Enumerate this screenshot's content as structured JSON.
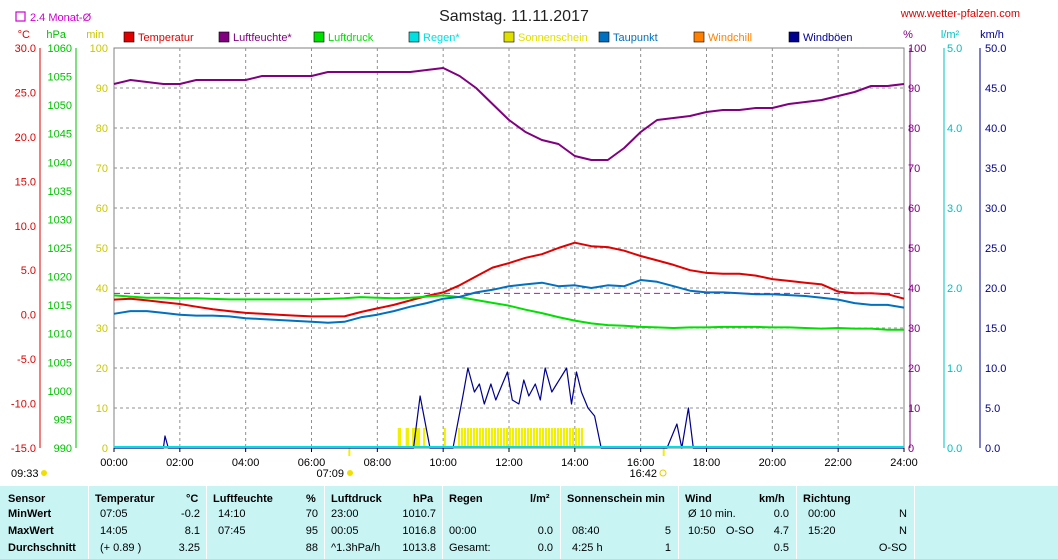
{
  "header": {
    "title": "Samstag. 11.11.2017",
    "site": "www.wetter-pfalzen.com",
    "monthly_avg_label": "2.4 Monat-Ø",
    "unit_celsius": "°C",
    "unit_hpa": "hPa",
    "unit_min": "min",
    "unit_percent": "%",
    "unit_lm2": "l/m²",
    "unit_kmh": "km/h"
  },
  "legend": [
    {
      "label": "Temperatur",
      "color": "#e00000"
    },
    {
      "label": "Luftfeuchte*",
      "color": "#800080"
    },
    {
      "label": "Luftdruck",
      "color": "#00e000"
    },
    {
      "label": "Regen*",
      "color": "#00e0e0"
    },
    {
      "label": "Sonnenschein",
      "color": "#e0e000"
    },
    {
      "label": "Taupunkt",
      "color": "#0070c0"
    },
    {
      "label": "Windchill",
      "color": "#ff8000"
    },
    {
      "label": "Windböen",
      "color": "#000090"
    }
  ],
  "sun_times": {
    "sunrise_time": "07:09",
    "sunset_time": "16:42",
    "corner_time": "09:33"
  },
  "chart_data": {
    "type": "line",
    "title": "Samstag. 11.11.2017",
    "x_ticks": [
      "00:00",
      "02:00",
      "04:00",
      "06:00",
      "08:00",
      "10:00",
      "12:00",
      "14:00",
      "16:00",
      "18:00",
      "20:00",
      "22:00",
      "24:00"
    ],
    "xlim": [
      0,
      24
    ],
    "axes": {
      "temperature_c": {
        "ylim": [
          -15,
          30
        ],
        "ticks": [
          "30.0",
          "25.0",
          "20.0",
          "15.0",
          "10.0",
          "5.0",
          "0.0",
          "-5.0",
          "-10.0",
          "-15.0"
        ],
        "color": "#e00000"
      },
      "pressure_hpa": {
        "ylim": [
          990,
          1060
        ],
        "ticks": [
          "1060",
          "1055",
          "1050",
          "1045",
          "1040",
          "1035",
          "1030",
          "1025",
          "1020",
          "1015",
          "1010",
          "1005",
          "1000",
          "995",
          "990"
        ],
        "color": "#00c000"
      },
      "sunshine_min": {
        "ylim": [
          0,
          100
        ],
        "ticks": [
          "100",
          "90",
          "80",
          "70",
          "60",
          "50",
          "40",
          "30",
          "20",
          "10",
          "0"
        ],
        "color": "#c8c800"
      },
      "humidity_pct": {
        "ylim": [
          0,
          100
        ],
        "ticks": [
          "100",
          "90",
          "80",
          "70",
          "60",
          "50",
          "40",
          "30",
          "20",
          "10",
          "0"
        ],
        "color": "#800080"
      },
      "rain_lm2": {
        "ylim": [
          0,
          5
        ],
        "ticks": [
          "5.0",
          "4.0",
          "3.0",
          "2.0",
          "1.0",
          "0.0"
        ],
        "color": "#00c0c0"
      },
      "wind_kmh": {
        "ylim": [
          0,
          50
        ],
        "ticks": [
          "50.0",
          "45.0",
          "40.0",
          "35.0",
          "30.0",
          "25.0",
          "20.0",
          "15.0",
          "10.0",
          "5.0",
          "0.0"
        ],
        "color": "#000090"
      }
    },
    "monthly_avg_temperature": 2.4,
    "series": [
      {
        "name": "Temperatur",
        "axis": "temperature_c",
        "color": "#e00000",
        "x": [
          0,
          0.5,
          1,
          1.5,
          2,
          2.5,
          3,
          3.5,
          4,
          4.5,
          5,
          5.5,
          6,
          6.5,
          7,
          7.5,
          8,
          8.5,
          9,
          9.5,
          10,
          10.5,
          11,
          11.5,
          12,
          12.5,
          13,
          13.5,
          14,
          14.5,
          15,
          15.5,
          16,
          16.5,
          17,
          17.5,
          18,
          18.5,
          19,
          19.5,
          20,
          20.5,
          21,
          21.5,
          22,
          22.5,
          23,
          23.5,
          24
        ],
        "values": [
          1.7,
          1.8,
          1.6,
          1.4,
          1.2,
          0.9,
          0.6,
          0.4,
          0.2,
          0.1,
          0.0,
          -0.1,
          -0.2,
          -0.2,
          -0.2,
          0.3,
          0.7,
          1.1,
          1.6,
          2.1,
          2.5,
          3.3,
          4.3,
          5.3,
          5.8,
          6.4,
          6.8,
          7.5,
          8.1,
          7.7,
          7.6,
          7.2,
          6.6,
          6.1,
          5.6,
          5.0,
          4.7,
          4.6,
          4.6,
          4.4,
          4.0,
          3.8,
          3.6,
          3.4,
          2.6,
          2.4,
          2.4,
          2.3,
          1.8
        ]
      },
      {
        "name": "Luftfeuchte*",
        "axis": "humidity_pct",
        "color": "#800080",
        "x": [
          0,
          0.5,
          1,
          1.5,
          2,
          2.5,
          3,
          3.5,
          4,
          4.5,
          5,
          5.5,
          6,
          6.5,
          7,
          7.5,
          8,
          8.5,
          9,
          9.5,
          10,
          10.5,
          11,
          11.5,
          12,
          12.5,
          13,
          13.5,
          14,
          14.5,
          15,
          15.5,
          16,
          16.5,
          17,
          17.5,
          18,
          18.5,
          19,
          19.5,
          20,
          20.5,
          21,
          21.5,
          22,
          22.5,
          23,
          23.5,
          24
        ],
        "values": [
          91,
          92,
          91.5,
          91,
          91,
          92,
          92,
          92,
          92,
          93,
          93,
          93,
          93,
          94,
          94,
          94,
          94,
          94,
          94,
          94.5,
          95,
          93,
          90,
          86,
          82,
          79,
          77,
          76,
          73,
          72,
          72,
          75,
          79,
          82,
          82.5,
          83,
          84,
          84.5,
          84.5,
          85,
          85,
          86,
          86.5,
          87,
          88,
          89,
          90.5,
          90.5,
          91
        ]
      },
      {
        "name": "Luftdruck",
        "axis": "pressure_hpa",
        "color": "#00e000",
        "x": [
          0,
          0.5,
          1,
          1.5,
          2,
          2.5,
          3,
          3.5,
          4,
          4.5,
          5,
          5.5,
          6,
          6.5,
          7,
          7.5,
          8,
          8.5,
          9,
          9.5,
          10,
          10.5,
          11,
          11.5,
          12,
          12.5,
          13,
          13.5,
          14,
          14.5,
          15,
          15.5,
          16,
          16.5,
          17,
          17.5,
          18,
          18.5,
          19,
          19.5,
          20,
          20.5,
          21,
          21.5,
          22,
          22.5,
          23,
          23.5,
          24
        ],
        "values": [
          1016.7,
          1016.5,
          1016.3,
          1016.3,
          1016.2,
          1016.2,
          1016.1,
          1016.0,
          1016.0,
          1016.0,
          1016.0,
          1016.0,
          1016.0,
          1016.1,
          1016.2,
          1016.4,
          1016.3,
          1016.2,
          1016.3,
          1016.5,
          1016.7,
          1016.4,
          1015.9,
          1015.4,
          1014.9,
          1014.2,
          1013.6,
          1012.9,
          1012.3,
          1011.8,
          1011.5,
          1011.4,
          1011.2,
          1011.1,
          1011.0,
          1011.1,
          1011.1,
          1011.2,
          1011.2,
          1011.2,
          1011.1,
          1011.1,
          1011.0,
          1010.9,
          1011.0,
          1010.9,
          1010.9,
          1010.7,
          1010.7
        ]
      },
      {
        "name": "Taupunkt",
        "axis": "temperature_c",
        "color": "#0070c0",
        "x": [
          0,
          0.5,
          1,
          1.5,
          2,
          2.5,
          3,
          3.5,
          4,
          4.5,
          5,
          5.5,
          6,
          6.5,
          7,
          7.5,
          8,
          8.5,
          9,
          9.5,
          10,
          10.5,
          11,
          11.5,
          12,
          12.5,
          13,
          13.5,
          14,
          14.5,
          15,
          15.5,
          16,
          16.5,
          17,
          17.5,
          18,
          18.5,
          19,
          19.5,
          20,
          20.5,
          21,
          21.5,
          22,
          22.5,
          23,
          23.5,
          24
        ],
        "values": [
          0.1,
          0.4,
          0.4,
          0.2,
          0.0,
          -0.1,
          -0.1,
          -0.2,
          -0.4,
          -0.5,
          -0.6,
          -0.7,
          -0.8,
          -0.9,
          -0.8,
          -0.3,
          0.0,
          0.4,
          0.9,
          1.3,
          1.8,
          2.0,
          2.5,
          2.8,
          3.2,
          3.4,
          3.6,
          3.2,
          3.3,
          3.0,
          3.3,
          3.2,
          3.9,
          3.7,
          3.2,
          2.7,
          2.5,
          2.5,
          2.4,
          2.3,
          2.3,
          2.2,
          2.1,
          1.9,
          1.7,
          1.3,
          1.1,
          1.1,
          0.8
        ]
      },
      {
        "name": "Windböen",
        "axis": "wind_kmh",
        "color": "#000090",
        "x": [
          0,
          1.5,
          1.55,
          1.65,
          8.7,
          9.1,
          9.3,
          9.6,
          10.3,
          10.6,
          10.75,
          10.95,
          11.1,
          11.25,
          11.45,
          11.6,
          11.8,
          11.95,
          12.1,
          12.3,
          12.45,
          12.6,
          12.8,
          12.95,
          13.1,
          13.3,
          13.45,
          13.6,
          13.75,
          13.9,
          14.05,
          14.2,
          14.4,
          14.6,
          14.8,
          15.0,
          16.8,
          17.1,
          17.25,
          17.45,
          17.6,
          24
        ],
        "values": [
          0,
          0,
          1.5,
          0,
          0,
          0,
          6.5,
          0,
          0,
          6.5,
          10,
          7,
          8,
          5.5,
          8,
          6,
          8,
          9.5,
          6,
          5.5,
          8.5,
          6.5,
          8,
          6,
          10,
          7,
          8,
          9,
          10,
          5.5,
          9.5,
          7,
          5,
          4,
          0,
          0,
          0,
          3,
          0,
          5,
          0,
          0
        ]
      }
    ],
    "sunshine_intervals": [
      [
        8.62,
        8.72
      ],
      [
        8.86,
        8.96
      ],
      [
        9.05,
        9.3
      ],
      [
        9.39,
        9.46
      ],
      [
        10.02,
        10.07
      ],
      [
        10.45,
        14.2
      ]
    ]
  },
  "table": {
    "headers": [
      "Sensor",
      "Temperatur",
      "°C",
      "Luftfeuchte",
      "%",
      "Luftdruck",
      "hPa",
      "Regen",
      "l/m²",
      "Sonnenschein min",
      "Wind",
      "km/h",
      "Richtung"
    ],
    "rows": [
      {
        "label": "MinWert",
        "temp_time": "07:05",
        "temp_val": "-0.2",
        "hum_time": "14:10",
        "hum_val": "70",
        "press_time": "23:00",
        "press_val": "1010.7",
        "rain_time": "",
        "rain_val": "",
        "sun_time": "",
        "sun_val": "",
        "wind_time": "Ø 10 min.",
        "wind_dir": "",
        "wind_val": "0.0",
        "dir_time": "00:00",
        "dir_val": "N"
      },
      {
        "label": "MaxWert",
        "temp_time": "14:05",
        "temp_val": "8.1",
        "hum_time": "07:45",
        "hum_val": "95",
        "press_time": "00:05",
        "press_val": "1016.8",
        "rain_time": "00:00",
        "rain_val": "0.0",
        "sun_time": "08:40",
        "sun_val": "5",
        "wind_time": "10:50",
        "wind_dir": "O-SO",
        "wind_val": "4.7",
        "dir_time": "15:20",
        "dir_val": "N"
      },
      {
        "label": "Durchschnitt",
        "temp_time": "(+ 0.89 )",
        "temp_val": "3.25",
        "hum_time": "",
        "hum_val": "88",
        "press_time": "^1.3hPa/h",
        "press_val": "1013.8",
        "rain_time": "Gesamt:",
        "rain_val": "0.0",
        "sun_time": "4:25 h",
        "sun_val": "1",
        "wind_time": "",
        "wind_dir": "",
        "wind_val": "0.5",
        "dir_time": "",
        "dir_val": "O-SO"
      }
    ]
  }
}
